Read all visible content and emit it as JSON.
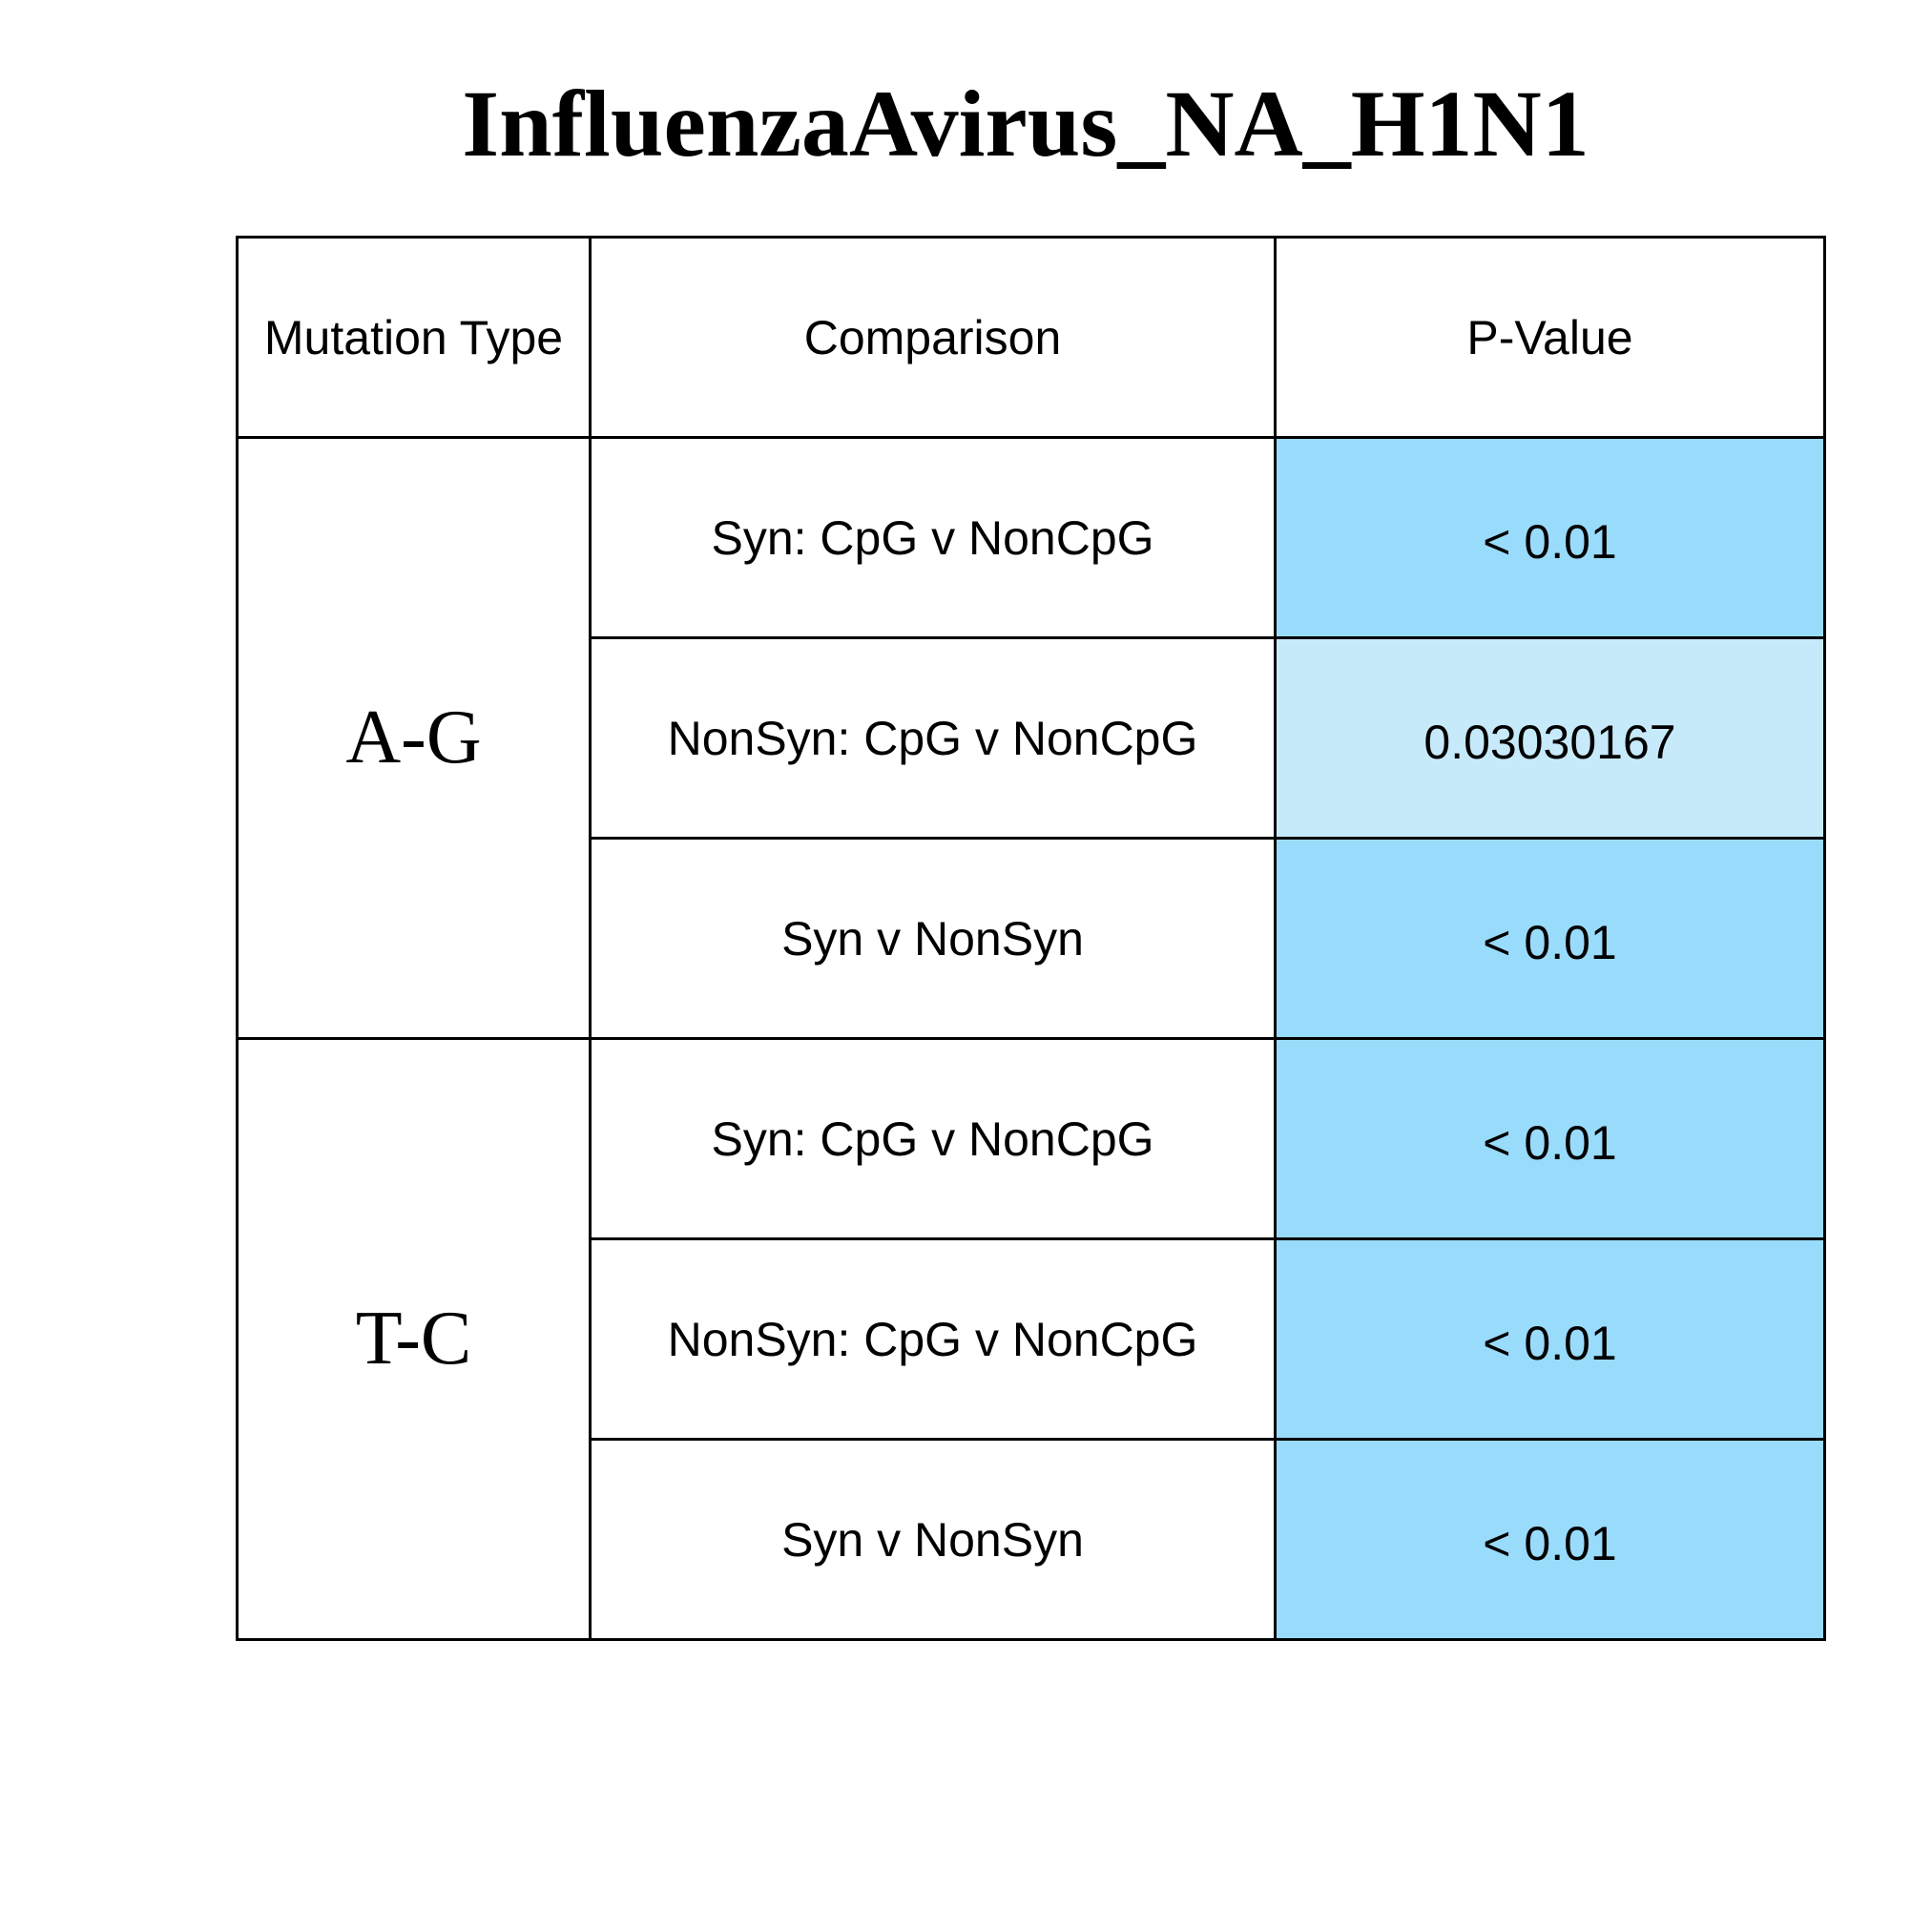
{
  "chart_data": {
    "type": "table",
    "title": "InfluenzaAvirus_NA_H1N1",
    "columns": [
      "Mutation Type",
      "Comparison",
      "P-Value"
    ],
    "groups": [
      {
        "mutation_type": "A-G",
        "rows": [
          {
            "comparison": "Syn: CpG v NonCpG",
            "p_value": "< 0.01",
            "significance": "strong"
          },
          {
            "comparison": "NonSyn: CpG v NonCpG",
            "p_value": "0.03030167",
            "significance": "weak"
          },
          {
            "comparison": "Syn v NonSyn",
            "p_value": "< 0.01",
            "significance": "strong"
          }
        ]
      },
      {
        "mutation_type": "T-C",
        "rows": [
          {
            "comparison": "Syn: CpG v NonCpG",
            "p_value": "< 0.01",
            "significance": "strong"
          },
          {
            "comparison": "NonSyn: CpG v NonCpG",
            "p_value": "< 0.01",
            "significance": "strong"
          },
          {
            "comparison": "Syn v NonSyn",
            "p_value": "< 0.01",
            "significance": "strong"
          }
        ]
      }
    ],
    "colors": {
      "strong": "#99dbfb",
      "weak": "#c7eafb",
      "border": "#000000",
      "background": "#ffffff"
    }
  }
}
